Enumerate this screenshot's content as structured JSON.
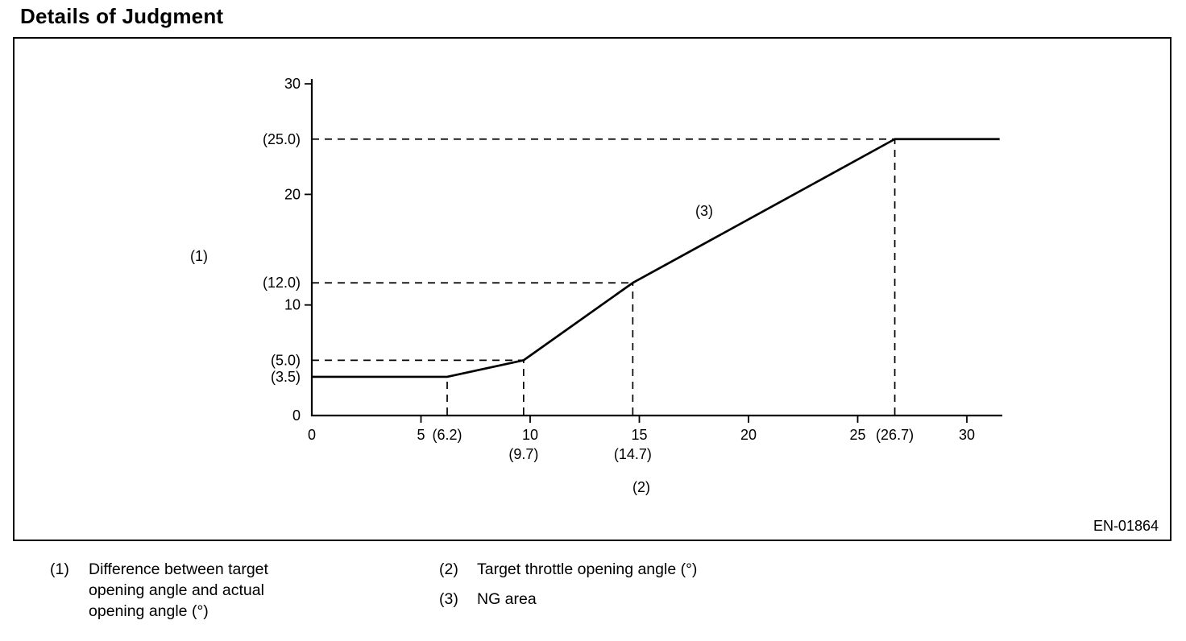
{
  "page": {
    "title": "Details of Judgment",
    "figure_code": "EN-01864"
  },
  "chart_data": {
    "type": "line",
    "title": "",
    "xlabel": "(2) Target throttle opening angle (°)",
    "ylabel": "(1) Difference between target opening angle and actual opening angle (°)",
    "x_range": [
      0,
      31.5
    ],
    "y_range": [
      0,
      30
    ],
    "grid": false,
    "legend_position": "none",
    "series": [
      {
        "name": "NG area boundary (3)",
        "points": [
          [
            0,
            3.5
          ],
          [
            6.2,
            3.5
          ],
          [
            9.7,
            5.0
          ],
          [
            14.7,
            12.0
          ],
          [
            26.7,
            25.0
          ],
          [
            31.5,
            25.0
          ]
        ]
      }
    ],
    "x_ticks": [
      {
        "value": 0,
        "label": "0"
      },
      {
        "value": 5,
        "label": "5"
      },
      {
        "value": 10,
        "label": "10"
      },
      {
        "value": 15,
        "label": "15"
      },
      {
        "value": 20,
        "label": "20"
      },
      {
        "value": 25,
        "label": "25"
      },
      {
        "value": 30,
        "label": "30"
      }
    ],
    "x_paren_labels": [
      {
        "value": 6.2,
        "label": "(6.2)",
        "row": 1
      },
      {
        "value": 9.7,
        "label": "(9.7)",
        "row": 2
      },
      {
        "value": 14.7,
        "label": "(14.7)",
        "row": 2
      },
      {
        "value": 26.7,
        "label": "(26.7)",
        "row": 1
      }
    ],
    "y_ticks": [
      {
        "value": 0,
        "label": "0"
      },
      {
        "value": 10,
        "label": "10"
      },
      {
        "value": 20,
        "label": "20"
      },
      {
        "value": 30,
        "label": "30"
      }
    ],
    "y_paren_labels": [
      {
        "value": 3.5,
        "label": "(3.5)"
      },
      {
        "value": 5.0,
        "label": "(5.0)"
      },
      {
        "value": 12.0,
        "label": "(12.0)"
      },
      {
        "value": 25.0,
        "label": "(25.0)"
      }
    ],
    "h_guides": [
      {
        "y": 5.0,
        "x_end": 9.7
      },
      {
        "y": 12.0,
        "x_end": 14.7
      },
      {
        "y": 25.0,
        "x_end": 26.7
      }
    ],
    "v_guides": [
      {
        "x": 6.2,
        "y_end": 3.5
      },
      {
        "x": 9.7,
        "y_end": 5.0
      },
      {
        "x": 14.7,
        "y_end": 12.0
      },
      {
        "x": 26.7,
        "y_end": 25.0
      }
    ],
    "annotations": {
      "y_axis_ref": "(1)",
      "x_axis_ref": "(2)",
      "curve_ref": "(3)"
    }
  },
  "legend": {
    "items": [
      {
        "ref": "(1)",
        "text": "Difference between target opening angle and actual opening angle (°)"
      },
      {
        "ref": "(2)",
        "text": "Target throttle opening angle (°)"
      },
      {
        "ref": "(3)",
        "text": "NG area"
      }
    ]
  }
}
